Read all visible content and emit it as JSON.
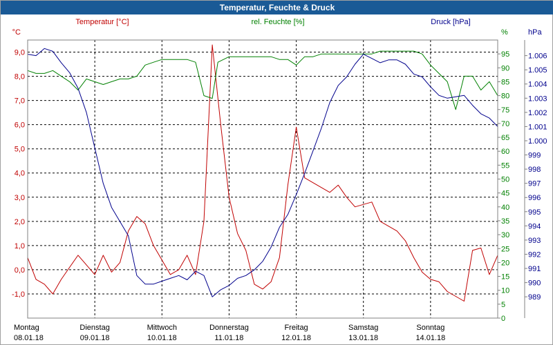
{
  "window": {
    "title": "Temperatur, Feuchte & Druck"
  },
  "colors": {
    "temperature": "#c00000",
    "humidity": "#008000",
    "pressure": "#00008c",
    "grid": "#000000",
    "titlebar": "#1a5a96"
  },
  "chart_data": {
    "type": "line",
    "title": "Temperatur, Feuchte & Druck",
    "grid": true,
    "x_start": "2018-01-08 00:00",
    "x_end": "2018-01-14 24:00",
    "x_days": [
      {
        "day": "Montag",
        "date": "08.01.18"
      },
      {
        "day": "Dienstag",
        "date": "09.01.18"
      },
      {
        "day": "Mittwoch",
        "date": "10.01.18"
      },
      {
        "day": "Donnerstag",
        "date": "11.01.18"
      },
      {
        "day": "Freitag",
        "date": "12.01.18"
      },
      {
        "day": "Samstag",
        "date": "13.01.18"
      },
      {
        "day": "Sonntag",
        "date": "14.01.18"
      }
    ],
    "axes": {
      "temperature": {
        "unit": "°C",
        "series_label": "Temperatur [°C]",
        "ylim": [
          -2.0,
          9.5
        ],
        "ticks": [
          "9,0",
          "8,0",
          "7,0",
          "6,0",
          "5,0",
          "4,0",
          "3,0",
          "2,0",
          "1,0",
          "0,0",
          "-1,0"
        ],
        "tick_values": [
          9,
          8,
          7,
          6,
          5,
          4,
          3,
          2,
          1,
          0,
          -1
        ]
      },
      "humidity": {
        "unit": "%",
        "series_label": "rel. Feuchte [%]",
        "ylim": [
          0,
          100
        ],
        "ticks": [
          "95",
          "90",
          "85",
          "80",
          "75",
          "70",
          "65",
          "60",
          "55",
          "50",
          "45",
          "40",
          "35",
          "30",
          "25",
          "20",
          "15",
          "10",
          "5",
          "0"
        ],
        "tick_values": [
          95,
          90,
          85,
          80,
          75,
          70,
          65,
          60,
          55,
          50,
          45,
          40,
          35,
          30,
          25,
          20,
          15,
          10,
          5,
          0
        ]
      },
      "pressure": {
        "unit": "hPa",
        "series_label": "Druck [hPa]",
        "ylim": [
          987.5,
          1007.1
        ],
        "ticks": [
          "1.006",
          "1.005",
          "1.004",
          "1.003",
          "1.002",
          "1.001",
          "1.000",
          "999",
          "998",
          "997",
          "996",
          "995",
          "994",
          "993",
          "992",
          "991",
          "990",
          "989"
        ],
        "tick_values": [
          1006,
          1005,
          1004,
          1003,
          1002,
          1001,
          1000,
          999,
          998,
          997,
          996,
          995,
          994,
          993,
          992,
          991,
          990,
          989
        ]
      }
    },
    "series": [
      {
        "name": "Temperatur [°C]",
        "axis": "temperature",
        "x": [
          "2018-01-08 00:00",
          "2018-01-08 03:00",
          "2018-01-08 06:00",
          "2018-01-08 09:00",
          "2018-01-08 12:00",
          "2018-01-08 15:00",
          "2018-01-08 18:00",
          "2018-01-08 21:00",
          "2018-01-09 00:00",
          "2018-01-09 03:00",
          "2018-01-09 06:00",
          "2018-01-09 09:00",
          "2018-01-09 12:00",
          "2018-01-09 15:00",
          "2018-01-09 18:00",
          "2018-01-09 21:00",
          "2018-01-10 00:00",
          "2018-01-10 03:00",
          "2018-01-10 06:00",
          "2018-01-10 09:00",
          "2018-01-10 12:00",
          "2018-01-10 15:00",
          "2018-01-10 18:00",
          "2018-01-10 21:00",
          "2018-01-11 00:00",
          "2018-01-11 03:00",
          "2018-01-11 06:00",
          "2018-01-11 09:00",
          "2018-01-11 12:00",
          "2018-01-11 15:00",
          "2018-01-11 18:00",
          "2018-01-11 21:00",
          "2018-01-12 00:00",
          "2018-01-12 03:00",
          "2018-01-12 06:00",
          "2018-01-12 09:00",
          "2018-01-12 12:00",
          "2018-01-12 15:00",
          "2018-01-12 18:00",
          "2018-01-12 21:00",
          "2018-01-13 00:00",
          "2018-01-13 03:00",
          "2018-01-13 06:00",
          "2018-01-13 09:00",
          "2018-01-13 12:00",
          "2018-01-13 15:00",
          "2018-01-13 18:00",
          "2018-01-13 21:00",
          "2018-01-14 00:00",
          "2018-01-14 03:00",
          "2018-01-14 06:00",
          "2018-01-14 09:00",
          "2018-01-14 12:00",
          "2018-01-14 15:00",
          "2018-01-14 18:00",
          "2018-01-14 21:00",
          "2018-01-14 24:00"
        ],
        "y": [
          0.5,
          -0.4,
          -0.6,
          -1.0,
          -0.4,
          0.1,
          0.6,
          0.2,
          -0.2,
          0.6,
          -0.1,
          0.3,
          1.6,
          2.2,
          1.9,
          1.0,
          0.4,
          -0.2,
          0.0,
          0.6,
          -0.2,
          2.0,
          9.3,
          6.0,
          3.0,
          1.5,
          0.8,
          -0.6,
          -0.8,
          -0.5,
          0.5,
          3.5,
          5.9,
          3.8,
          3.6,
          3.4,
          3.2,
          3.5,
          3.0,
          2.6,
          2.7,
          2.8,
          2.0,
          1.8,
          1.6,
          1.2,
          0.5,
          -0.1,
          -0.4,
          -0.5,
          -0.9,
          -1.1,
          -1.3,
          0.8,
          0.9,
          -0.2,
          0.6
        ]
      },
      {
        "name": "rel. Feuchte [%]",
        "axis": "humidity",
        "x": [
          "2018-01-08 00:00",
          "2018-01-08 03:00",
          "2018-01-08 06:00",
          "2018-01-08 09:00",
          "2018-01-08 12:00",
          "2018-01-08 15:00",
          "2018-01-08 18:00",
          "2018-01-08 21:00",
          "2018-01-09 00:00",
          "2018-01-09 03:00",
          "2018-01-09 06:00",
          "2018-01-09 09:00",
          "2018-01-09 12:00",
          "2018-01-09 15:00",
          "2018-01-09 18:00",
          "2018-01-09 21:00",
          "2018-01-10 00:00",
          "2018-01-10 03:00",
          "2018-01-10 06:00",
          "2018-01-10 09:00",
          "2018-01-10 12:00",
          "2018-01-10 15:00",
          "2018-01-10 18:00",
          "2018-01-10 20:00",
          "2018-01-10 22:00",
          "2018-01-11 00:00",
          "2018-01-11 03:00",
          "2018-01-11 06:00",
          "2018-01-11 09:00",
          "2018-01-11 12:00",
          "2018-01-11 15:00",
          "2018-01-11 18:00",
          "2018-01-11 21:00",
          "2018-01-12 00:00",
          "2018-01-12 03:00",
          "2018-01-12 06:00",
          "2018-01-12 09:00",
          "2018-01-12 12:00",
          "2018-01-12 15:00",
          "2018-01-12 18:00",
          "2018-01-12 21:00",
          "2018-01-13 00:00",
          "2018-01-13 03:00",
          "2018-01-13 06:00",
          "2018-01-13 09:00",
          "2018-01-13 12:00",
          "2018-01-13 15:00",
          "2018-01-13 18:00",
          "2018-01-13 21:00",
          "2018-01-14 00:00",
          "2018-01-14 03:00",
          "2018-01-14 06:00",
          "2018-01-14 09:00",
          "2018-01-14 12:00",
          "2018-01-14 15:00",
          "2018-01-14 18:00",
          "2018-01-14 21:00",
          "2018-01-14 24:00"
        ],
        "y": [
          89,
          88,
          88,
          89,
          87,
          85,
          82,
          86,
          85,
          84,
          85,
          86,
          86,
          87,
          91,
          92,
          93,
          93,
          93,
          93,
          92,
          80,
          79,
          92,
          93,
          94,
          94,
          94,
          94,
          94,
          94,
          93,
          93,
          91,
          94,
          94,
          95,
          95,
          95,
          95,
          95,
          95,
          95,
          96,
          96,
          96,
          96,
          96,
          95,
          91,
          88,
          85,
          75,
          87,
          87,
          82,
          85,
          80
        ]
      },
      {
        "name": "Druck [hPa]",
        "axis": "pressure",
        "x": [
          "2018-01-08 00:00",
          "2018-01-08 03:00",
          "2018-01-08 06:00",
          "2018-01-08 09:00",
          "2018-01-08 12:00",
          "2018-01-08 15:00",
          "2018-01-08 18:00",
          "2018-01-08 21:00",
          "2018-01-09 00:00",
          "2018-01-09 03:00",
          "2018-01-09 06:00",
          "2018-01-09 09:00",
          "2018-01-09 12:00",
          "2018-01-09 15:00",
          "2018-01-09 18:00",
          "2018-01-09 21:00",
          "2018-01-10 00:00",
          "2018-01-10 03:00",
          "2018-01-10 06:00",
          "2018-01-10 09:00",
          "2018-01-10 12:00",
          "2018-01-10 15:00",
          "2018-01-10 18:00",
          "2018-01-10 21:00",
          "2018-01-11 00:00",
          "2018-01-11 03:00",
          "2018-01-11 06:00",
          "2018-01-11 09:00",
          "2018-01-11 12:00",
          "2018-01-11 15:00",
          "2018-01-11 18:00",
          "2018-01-11 21:00",
          "2018-01-12 00:00",
          "2018-01-12 03:00",
          "2018-01-12 06:00",
          "2018-01-12 09:00",
          "2018-01-12 12:00",
          "2018-01-12 15:00",
          "2018-01-12 18:00",
          "2018-01-12 21:00",
          "2018-01-13 00:00",
          "2018-01-13 03:00",
          "2018-01-13 06:00",
          "2018-01-13 09:00",
          "2018-01-13 12:00",
          "2018-01-13 15:00",
          "2018-01-13 18:00",
          "2018-01-13 21:00",
          "2018-01-14 00:00",
          "2018-01-14 03:00",
          "2018-01-14 06:00",
          "2018-01-14 09:00",
          "2018-01-14 12:00",
          "2018-01-14 15:00",
          "2018-01-14 18:00",
          "2018-01-14 21:00",
          "2018-01-14 24:00"
        ],
        "y": [
          1006.1,
          1006.0,
          1006.5,
          1006.3,
          1005.5,
          1004.8,
          1003.7,
          1002.0,
          999.5,
          997.0,
          995.3,
          994.3,
          993.3,
          990.5,
          989.9,
          989.9,
          990.1,
          990.3,
          990.5,
          990.2,
          990.8,
          990.5,
          989.0,
          989.5,
          989.8,
          990.3,
          990.5,
          990.9,
          991.5,
          992.5,
          993.9,
          994.8,
          996.2,
          997.7,
          999.3,
          1000.9,
          1002.7,
          1003.9,
          1004.5,
          1005.4,
          1006.1,
          1005.8,
          1005.5,
          1005.7,
          1005.7,
          1005.4,
          1004.7,
          1004.5,
          1003.8,
          1003.2,
          1003.0,
          1003.1,
          1003.2,
          1002.5,
          1001.9,
          1001.6,
          1001.0
        ]
      }
    ]
  }
}
